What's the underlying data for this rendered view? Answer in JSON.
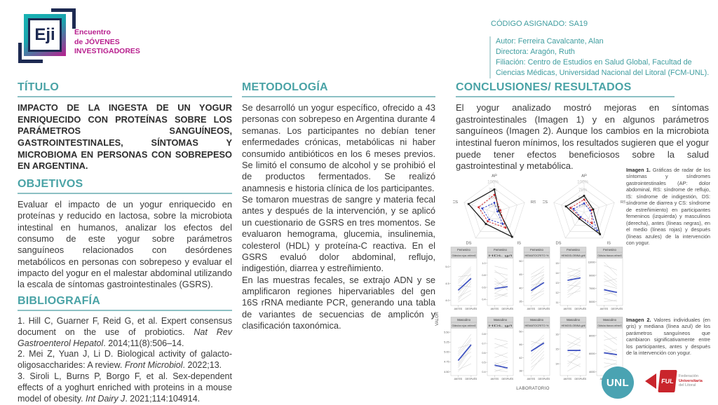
{
  "header": {
    "logo_acronym": "Eji",
    "wordmark_line1": "Encuentro",
    "wordmark_line2": "de JÓVENES",
    "wordmark_line3": "INVESTIGADORES",
    "code_label": "CÓDIGO ASIGNADO: SA19",
    "author": "Autor: Ferreira Cavalcante, Alan",
    "director": "Directora: Aragón, Ruth",
    "affiliation": "Filiación: Centro de Estudios en Salud Global, Facultad de Ciencias Médicas, Universidad Nacional del Litoral (FCM-UNL)."
  },
  "sections": {
    "titulo": {
      "heading": "TÍTULO",
      "body": "IMPACTO DE LA INGESTA DE UN YOGUR ENRIQUECIDO CON PROTEÍNAS SOBRE LOS PARÁMETROS SANGUÍNEOS, GASTROINTESTINALES, SÍNTOMAS Y MICROBIOMA EN PERSONAS CON SOBREPESO EN ARGENTINA."
    },
    "objetivos": {
      "heading": "OBJETIVOS",
      "body": "Evaluar el impacto de un yogur enriquecido en proteínas y reducido en lactosa, sobre la microbiota intestinal en humanos, analizar los efectos del consumo de este yogur sobre parámetros sanguíneos relacionados con desórdenes metabólicos en personas con sobrepeso y evaluar el impacto del yogur en el malestar abdominal utilizando la escala de síntomas gastrointestinales (GSRS)."
    },
    "bibliografia": {
      "heading": "BIBLIOGRAFÍA",
      "items": [
        {
          "pre": "1. Hill C, Guarner F, Reid G, et al. Expert consensus document on the use of probiotics. ",
          "it": "Nat Rev Gastroenterol Hepatol",
          "post": ". 2014;11(8):506–14."
        },
        {
          "pre": "2. Mei Z, Yuan J, Li D. Biological activity of galacto-oligosaccharides: A review. ",
          "it": "Front Microbiol",
          "post": ". 2022;13."
        },
        {
          "pre": "3. Siroli L, Burns P, Borgo F, et al. Sex-dependent effects of a yoghurt enriched with proteins in a mouse model of obesity. ",
          "it": "Int Dairy J",
          "post": ". 2021;114:104914."
        }
      ]
    },
    "metodologia": {
      "heading": "METODOLOGÍA",
      "p1": "Se desarrolló un yogur específico, ofrecido a 43 personas con sobrepeso en Argentina durante 4 semanas. Los participantes no debían tener enfermedades crónicas, metabólicas ni haber consumido antibióticos en los 6 meses previos. Se limitó el consumo de alcohol y se prohibió el de productos fermentados. Se realizó anamnesis e historia clínica de los participantes.",
      "p2": "Se tomaron muestras de sangre y materia fecal antes y después de la intervención, y se aplicó un cuestionario de GSRS en tres momentos. Se evaluaron hemograma, glucemia, insulinemia, colesterol (HDL) y proteína-C reactiva. En el GSRS evaluó dolor abdominal, reflujo, indigestión, diarrea y estreñimiento.",
      "p3": "En las muestras fecales, se extrajo ADN y se amplificaron regiones hipervariables del gen 16S rRNA mediante PCR, generando una tabla de variantes de secuencias de amplicón y clasificación taxonómica."
    },
    "conclusiones": {
      "heading": "CONCLUSIONES/ RESULTADOS",
      "body": "El yogur analizado mostró mejoras en síntomas gastrointestinales (Imagen 1) y en algunos parámetros sanguíneos (Imagen 2). Aunque los cambios en la microbiota intestinal fueron mínimos, los resultados sugieren que el yogur puede tener efectos beneficiosos sobre la salud gastrointestinal y metabólica."
    }
  },
  "captions": {
    "imagen1": {
      "lead": "Imagen 1.",
      "text": "Gráficas de radar de los síntomas y síndromes gastrointestinales (AP: dolor abdominal, RS: síndrome de reflujo, IS: síndrome de indigestión, DS: síndrome de diarrea y CS: síndrome de estreñimiento) en participantes femeninos (izquierda) y masculinos (derecha), antes (líneas negras), en el medio (líneas rojas) y después (líneas azules) de la intervención con yogur."
    },
    "imagen2": {
      "lead": "Imagen 2.",
      "text": "Valores individuales (en gris) y mediana (línea azul) de los parámetros sanguíneos que cambiaron significativamente entre los participantes, antes y después de la intervención con yogur."
    }
  },
  "chart_data": [
    {
      "id": "imagen1",
      "type": "radar",
      "axes": [
        "AP",
        "RS",
        "IS",
        "DS",
        "CS"
      ],
      "ring_labels": [
        "100%",
        "75%",
        "50%",
        "25%"
      ],
      "ring_fracs": [
        1,
        0.75,
        0.5,
        0.25
      ],
      "max": 100,
      "series_meta": [
        {
          "key": "antes",
          "label": "antes",
          "color": "#1a1a1a",
          "dash": "",
          "marker": "square"
        },
        {
          "key": "medio",
          "label": "en el medio",
          "color": "#cc2427",
          "dash": "2.6 1.8",
          "marker": "circle"
        },
        {
          "key": "despues",
          "label": "después",
          "color": "#2e3fc4",
          "dash": "2.6 1.8",
          "marker": "circle"
        }
      ],
      "facets": [
        {
          "name": "Femenino",
          "values": {
            "antes": [
              72,
              15,
              95,
              45,
              85
            ],
            "medio": [
              55,
              20,
              60,
              35,
              52
            ],
            "despues": [
              30,
              10,
              45,
              28,
              40
            ]
          }
        },
        {
          "name": "Masculino",
          "values": {
            "antes": [
              52,
              30,
              85,
              25,
              60
            ],
            "medio": [
              40,
              25,
              42,
              20,
              45
            ],
            "despues": [
              28,
              20,
              70,
              18,
              35
            ]
          }
        }
      ]
    },
    {
      "id": "imagen2",
      "type": "line",
      "x_labels": [
        "ANTES",
        "DESPUÉS"
      ],
      "ylabel": "VALOR",
      "xlabel": "LABORATORIO",
      "median_color": "#3b4fc0",
      "plots": [
        {
          "group": "Femenino",
          "param": "Glóbulos rojos cel/mm3",
          "ylim": [
            3.85,
            5.25
          ],
          "yticks": [
            {
              "label": "5.0",
              "v": 5.0
            },
            {
              "label": "4.5",
              "v": 4.5
            },
            {
              "label": "4.0",
              "v": 4.0
            }
          ],
          "median": [
            4.3,
            4.65
          ],
          "lines": [
            [
              4.0,
              4.5
            ],
            [
              4.2,
              4.7
            ],
            [
              4.5,
              4.9
            ],
            [
              4.6,
              5.0
            ],
            [
              4.1,
              4.3
            ],
            [
              4.35,
              4.8
            ],
            [
              3.95,
              4.2
            ],
            [
              4.7,
              4.75
            ],
            [
              4.25,
              4.55
            ],
            [
              4.45,
              4.4
            ],
            [
              4.05,
              4.6
            ],
            [
              4.55,
              4.95
            ]
          ]
        },
        {
          "group": "Femenino",
          "param": "HDL g/l",
          "ylim": [
            0.3,
            1.08
          ],
          "yticks": [
            {
              "label": "1.0",
              "v": 1.0
            },
            {
              "label": "0.8",
              "v": 0.8
            },
            {
              "label": "0.6",
              "v": 0.6
            },
            {
              "label": "0.4",
              "v": 0.4
            }
          ],
          "median": [
            0.58,
            0.61
          ],
          "lines": [
            [
              0.45,
              0.5
            ],
            [
              0.6,
              0.75
            ],
            [
              0.85,
              0.8
            ],
            [
              0.5,
              0.45
            ],
            [
              0.7,
              0.6
            ],
            [
              0.95,
              0.9
            ],
            [
              0.4,
              0.5
            ],
            [
              0.55,
              0.65
            ],
            [
              0.75,
              0.55
            ],
            [
              0.65,
              0.7
            ],
            [
              0.5,
              0.62
            ],
            [
              0.88,
              0.72
            ]
          ]
        },
        {
          "group": "Femenino",
          "param": "HEMATOCRITO %",
          "ylim": [
            33.5,
            51
          ],
          "yticks": [
            {
              "label": "50",
              "v": 50
            },
            {
              "label": "45",
              "v": 45
            },
            {
              "label": "40",
              "v": 40
            },
            {
              "label": "35",
              "v": 35
            }
          ],
          "median": [
            39,
            42
          ],
          "lines": [
            [
              36,
              40
            ],
            [
              38,
              43
            ],
            [
              40,
              44
            ],
            [
              42,
              45
            ],
            [
              37,
              39
            ],
            [
              43,
              47
            ],
            [
              39,
              44
            ],
            [
              44,
              46
            ],
            [
              35,
              38
            ],
            [
              41,
              42
            ],
            [
              38,
              45
            ],
            [
              45,
              48
            ]
          ]
        },
        {
          "group": "Femenino",
          "param": "HEMOGLOBINA g/dl",
          "ylim": [
            10.7,
            15.5
          ],
          "yticks": [
            {
              "label": "15",
              "v": 15
            },
            {
              "label": "14",
              "v": 14
            },
            {
              "label": "13",
              "v": 13
            },
            {
              "label": "12",
              "v": 12
            },
            {
              "label": "11",
              "v": 11
            }
          ],
          "median": [
            13.25,
            13.5
          ],
          "lines": [
            [
              11.5,
              12.5
            ],
            [
              12.2,
              13
            ],
            [
              13,
              13.8
            ],
            [
              13.5,
              14.2
            ],
            [
              12.8,
              12.6
            ],
            [
              14,
              14.5
            ],
            [
              12.5,
              13.5
            ],
            [
              14.5,
              14.2
            ],
            [
              11.8,
              12.2
            ],
            [
              13.2,
              14
            ],
            [
              12,
              13.2
            ],
            [
              13.8,
              13.6
            ]
          ]
        },
        {
          "group": "Femenino",
          "param": "Glóbulos blancos cel/mm3",
          "ylim": [
            4400,
            11600
          ],
          "yticks": [
            {
              "label": "11000",
              "v": 11000
            },
            {
              "label": "9000",
              "v": 9000
            },
            {
              "label": "7000",
              "v": 7000
            },
            {
              "label": "5000",
              "v": 5000
            }
          ],
          "median": [
            6800,
            6400
          ],
          "lines": [
            [
              9000,
              7500
            ],
            [
              10500,
              9800
            ],
            [
              7500,
              7000
            ],
            [
              6500,
              6000
            ],
            [
              8000,
              8500
            ],
            [
              5500,
              5000
            ],
            [
              7000,
              5800
            ],
            [
              9500,
              8000
            ],
            [
              6000,
              6500
            ],
            [
              11000,
              9000
            ],
            [
              5000,
              5200
            ],
            [
              8500,
              7200
            ]
          ]
        },
        {
          "group": "Masculino",
          "param": "Glóbulos rojos cel/mm3",
          "ylim": [
            4.4,
            5.6
          ],
          "yticks": [
            {
              "label": "5.50",
              "v": 5.5
            },
            {
              "label": "5.25",
              "v": 5.25
            },
            {
              "label": "5.00",
              "v": 5.0
            },
            {
              "label": "4.75",
              "v": 4.75
            },
            {
              "label": "4.50",
              "v": 4.5
            }
          ],
          "median": [
            4.78,
            5.18
          ],
          "lines": [
            [
              4.5,
              4.9
            ],
            [
              4.6,
              5.1
            ],
            [
              4.7,
              5.2
            ],
            [
              4.9,
              5.3
            ],
            [
              4.55,
              4.7
            ],
            [
              5.0,
              5.45
            ],
            [
              4.8,
              5.0
            ],
            [
              5.1,
              5.2
            ],
            [
              4.65,
              5.15
            ],
            [
              4.95,
              5.35
            ]
          ]
        },
        {
          "group": "Masculino",
          "param": "HDL g/l",
          "ylim": [
            0.36,
            0.86
          ],
          "yticks": [
            {
              "label": "0.8",
              "v": 0.8
            },
            {
              "label": "0.7",
              "v": 0.7
            },
            {
              "label": "0.6",
              "v": 0.6
            },
            {
              "label": "0.5",
              "v": 0.5
            },
            {
              "label": "0.4",
              "v": 0.4
            }
          ],
          "median": [
            0.47,
            0.44
          ],
          "lines": [
            [
              0.4,
              0.45
            ],
            [
              0.45,
              0.5
            ],
            [
              0.5,
              0.42
            ],
            [
              0.55,
              0.6
            ],
            [
              0.6,
              0.55
            ],
            [
              0.65,
              0.7
            ],
            [
              0.42,
              0.4
            ],
            [
              0.7,
              0.65
            ],
            [
              0.48,
              0.52
            ],
            [
              0.75,
              0.72
            ]
          ]
        },
        {
          "group": "Masculino",
          "param": "HEMATOCRITO %",
          "ylim": [
            36.5,
            51
          ],
          "yticks": [
            {
              "label": "50",
              "v": 50
            },
            {
              "label": "46",
              "v": 46
            },
            {
              "label": "42",
              "v": 42
            },
            {
              "label": "38",
              "v": 38
            }
          ],
          "median": [
            44,
            46.5
          ],
          "lines": [
            [
              40,
              44
            ],
            [
              42,
              46
            ],
            [
              44,
              47
            ],
            [
              46,
              48
            ],
            [
              39,
              42
            ],
            [
              45,
              49
            ],
            [
              41,
              45
            ],
            [
              47,
              46
            ],
            [
              43,
              47
            ],
            [
              38,
              43
            ]
          ]
        },
        {
          "group": "Masculino",
          "param": "HEMOGLOBINA g/dl",
          "ylim": [
            13.2,
            16.4
          ],
          "yticks": [
            {
              "label": "16",
              "v": 16
            },
            {
              "label": "15",
              "v": 15
            },
            {
              "label": "14",
              "v": 14
            }
          ],
          "median": [
            14.9,
            14.9
          ],
          "lines": [
            [
              13.5,
              14
            ],
            [
              14,
              14.5
            ],
            [
              14.5,
              15
            ],
            [
              15,
              15.5
            ],
            [
              14.2,
              13.8
            ],
            [
              15.5,
              15.2
            ],
            [
              13.8,
              14.8
            ],
            [
              16,
              15.6
            ],
            [
              14.8,
              14.4
            ],
            [
              15.2,
              15.8
            ]
          ]
        },
        {
          "group": "Masculino",
          "param": "Glóbulos blancos cel/mm3",
          "ylim": [
            3600,
            8800
          ],
          "yticks": [
            {
              "label": "8000",
              "v": 8000
            },
            {
              "label": "6000",
              "v": 6000
            },
            {
              "label": "4000",
              "v": 4000
            }
          ],
          "median": [
            6100,
            5900
          ],
          "lines": [
            [
              5000,
              4800
            ],
            [
              5500,
              5200
            ],
            [
              6000,
              6500
            ],
            [
              6500,
              5800
            ],
            [
              7000,
              6200
            ],
            [
              7500,
              7800
            ],
            [
              8000,
              7000
            ],
            [
              4500,
              5000
            ],
            [
              6200,
              5600
            ],
            [
              8500,
              7500
            ]
          ]
        }
      ]
    }
  ],
  "footer": {
    "unl": "UNL",
    "ful_acronym": "FUL",
    "ful_lines": [
      "Federación",
      "Universitaria",
      "del Litoral"
    ]
  }
}
